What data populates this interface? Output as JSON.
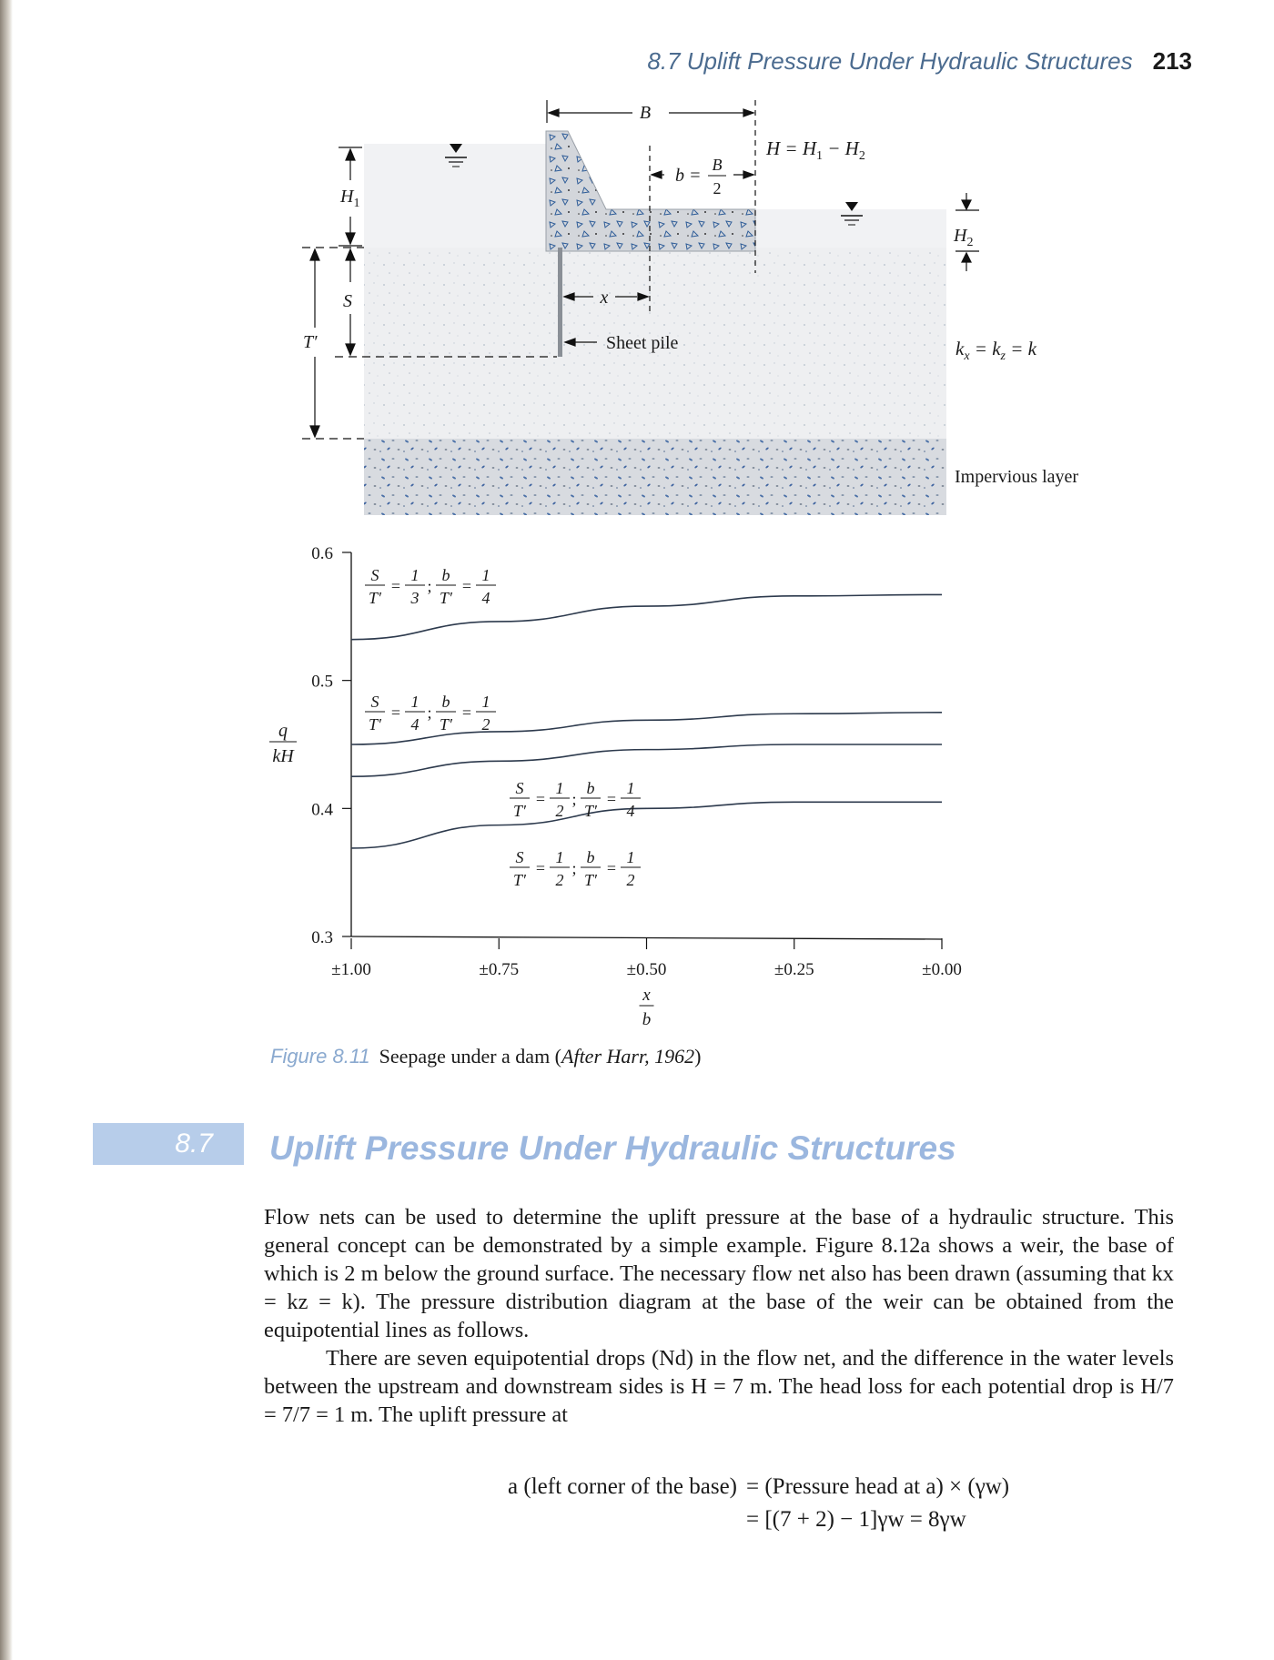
{
  "running_head": {
    "title": "8.7 Uplift Pressure Under Hydraulic Structures",
    "page_number": "213"
  },
  "figure": {
    "labels": {
      "B": "B",
      "H_eq": "H = H",
      "H_eq_sub1": "1",
      "H_eq_mid": " − H",
      "H_eq_sub2": "2",
      "b": "b =",
      "b_frac_num": "B",
      "b_frac_den": "2",
      "H1": "H",
      "H1_sub": "1",
      "H2": "H",
      "H2_sub": "2",
      "S": "S",
      "T_prime": "T′",
      "x": "x",
      "sheet_pile": "Sheet pile",
      "permeability": "k",
      "permeability_sub_x": "x",
      "permeability_mid": " = k",
      "permeability_sub_z": "z",
      "permeability_end": " = k",
      "impervious": "Impervious layer"
    }
  },
  "chart_data": {
    "type": "line",
    "xlabel_num": "x",
    "xlabel_den": "b",
    "ylabel_num": "q",
    "ylabel_den": "kH",
    "x_ticks": [
      "±1.00",
      "±0.75",
      "±0.50",
      "±0.25",
      "±0.00"
    ],
    "x_values": [
      1.0,
      0.75,
      0.5,
      0.25,
      0.0
    ],
    "y_ticks": [
      "0.3",
      "0.4",
      "0.5",
      "0.6"
    ],
    "ylim": [
      0.3,
      0.6
    ],
    "xlim": [
      1.0,
      0.0
    ],
    "series": [
      {
        "name": "S/T′ = 1/3; b/T′ = 1/4",
        "x": [
          1.0,
          0.75,
          0.5,
          0.25,
          0.0
        ],
        "y": [
          0.532,
          0.546,
          0.558,
          0.566,
          0.567
        ]
      },
      {
        "name": "S/T′ = 1/4; b/T′ = 1/2",
        "x": [
          1.0,
          0.75,
          0.5,
          0.25,
          0.0
        ],
        "y": [
          0.45,
          0.46,
          0.469,
          0.474,
          0.475
        ]
      },
      {
        "name": "S/T′ = 1/2; b/T′ = 1/4",
        "x": [
          1.0,
          0.75,
          0.5,
          0.25,
          0.0
        ],
        "y": [
          0.425,
          0.437,
          0.446,
          0.45,
          0.45
        ]
      },
      {
        "name": "S/T′ = 1/2; b/T′ = 1/2",
        "x": [
          1.0,
          0.75,
          0.5,
          0.25,
          0.0
        ],
        "y": [
          0.369,
          0.387,
          0.4,
          0.405,
          0.405
        ]
      }
    ],
    "curve_labels": [
      {
        "S_num": "S",
        "S_den": "T′",
        "eq1": "=",
        "a_num": "1",
        "a_den": "3",
        "sep": ";",
        "b_num": "b",
        "b_den": "T′",
        "eq2": "=",
        "c_num": "1",
        "c_den": "4"
      },
      {
        "S_num": "S",
        "S_den": "T′",
        "eq1": "=",
        "a_num": "1",
        "a_den": "4",
        "sep": ";",
        "b_num": "b",
        "b_den": "T′",
        "eq2": "=",
        "c_num": "1",
        "c_den": "2"
      },
      {
        "S_num": "S",
        "S_den": "T′",
        "eq1": "=",
        "a_num": "1",
        "a_den": "2",
        "sep": ";",
        "b_num": "b",
        "b_den": "T′",
        "eq2": "=",
        "c_num": "1",
        "c_den": "4"
      },
      {
        "S_num": "S",
        "S_den": "T′",
        "eq1": "=",
        "a_num": "1",
        "a_den": "2",
        "sep": ";",
        "b_num": "b",
        "b_den": "T′",
        "eq2": "=",
        "c_num": "1",
        "c_den": "2"
      }
    ]
  },
  "caption": {
    "label": "Figure 8.11",
    "text": "Seepage under a dam (",
    "cite": "After Harr, 1962",
    "close": ")"
  },
  "section": {
    "number": "8.7",
    "title": "Uplift Pressure Under Hydraulic Structures"
  },
  "paragraphs": {
    "p1": "Flow nets can be used to determine the uplift pressure at the base of a hydraulic structure. This general concept can be demonstrated by a simple example. Figure 8.12a shows a weir, the base of which is 2 m below the ground surface. The necessary flow net also has been drawn (assuming that kx = kz = k). The pressure distribution diagram at the base of the weir can be obtained from the equipotential lines as follows.",
    "p2": "There are seven equipotential drops (Nd) in the flow net, and the difference in the water levels between the upstream and downstream sides is H = 7 m. The head loss for each potential drop is H/7 = 7/7 = 1 m. The uplift pressure at"
  },
  "equation": {
    "line1_lhs": "a (left corner of the base)",
    "line1_rhs": "= (Pressure head at a) × (γw)",
    "line2_rhs": "= [(7 + 2) − 1]γw = 8γw"
  }
}
